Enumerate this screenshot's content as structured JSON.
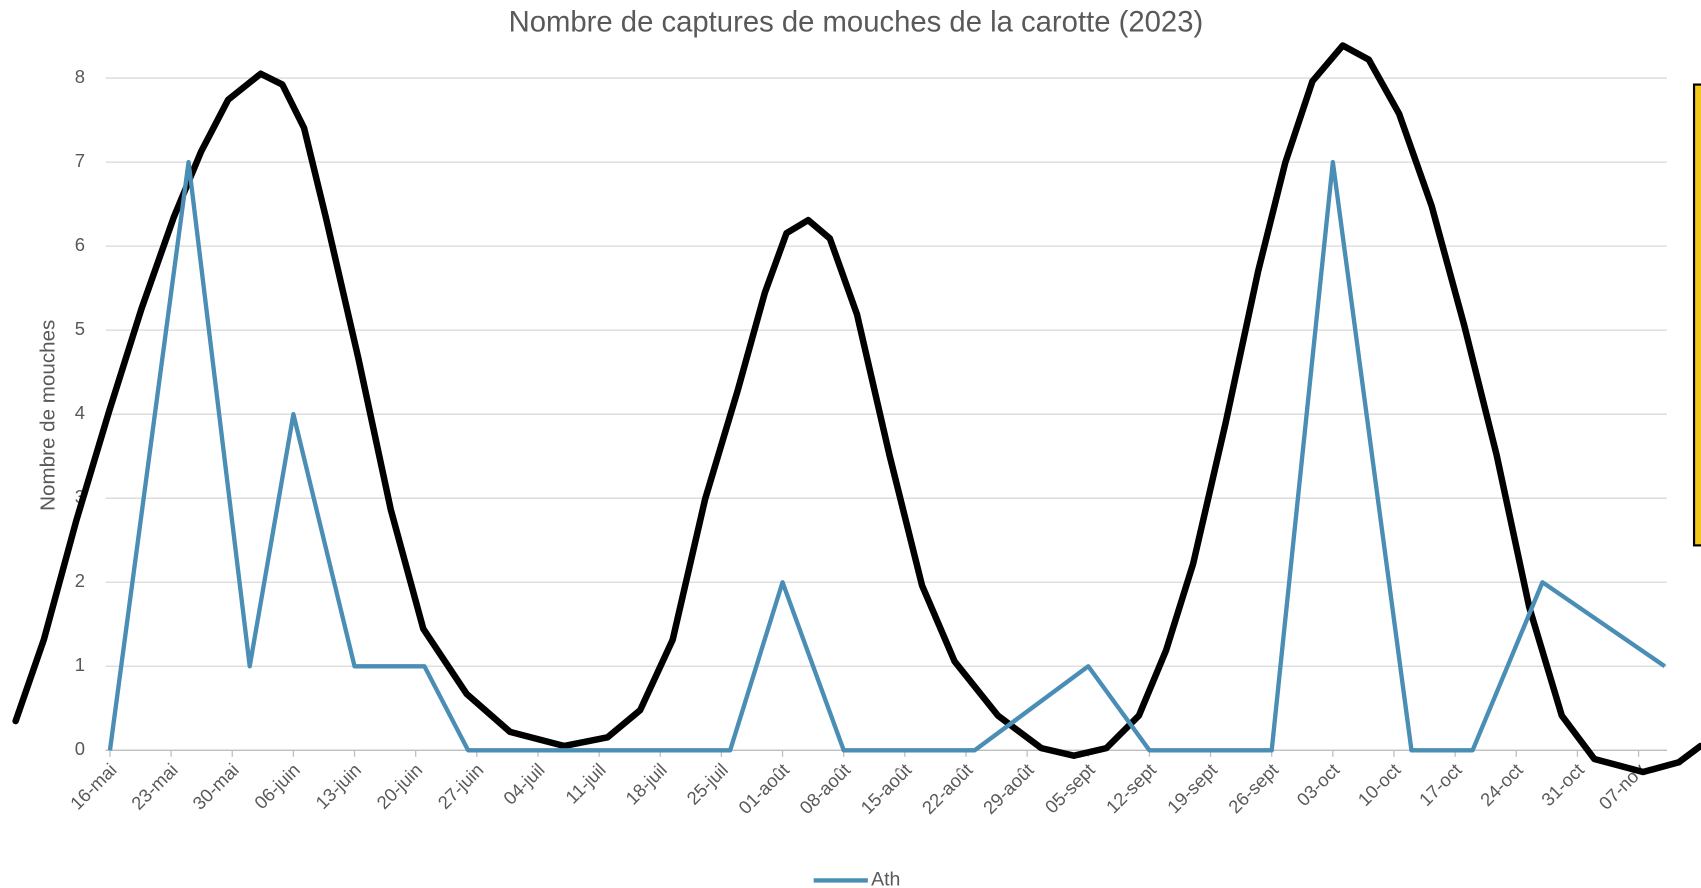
{
  "chart_data": {
    "type": "line",
    "title": "Nombre de captures de mouches de la carotte (2023)",
    "y_label": "Nombre de mouches",
    "x": [
      "2023-05-16",
      "2023-05-25",
      "2023-06-01",
      "2023-06-06",
      "2023-06-13",
      "2023-06-21",
      "2023-06-26",
      "2023-07-26",
      "2023-08-01",
      "2023-08-08",
      "2023-08-23",
      "2023-09-05",
      "2023-09-12",
      "2023-09-26",
      "2023-10-03",
      "2023-10-12",
      "2023-10-19",
      "2023-10-27",
      "2023-11-10"
    ],
    "series": [
      {
        "name": "Ath",
        "color": "#4a8db5",
        "values": [
          0,
          7,
          1,
          4,
          1,
          1,
          0,
          0,
          2,
          0,
          0,
          1,
          0,
          0,
          7,
          0,
          0,
          2,
          1
        ]
      }
    ],
    "xlim": [
      "2023-05-16",
      "2023-11-10"
    ],
    "xticks": [
      {
        "value": "2023-05-16",
        "label": "16-mai"
      },
      {
        "value": "2023-05-23",
        "label": "23-mai"
      },
      {
        "value": "2023-05-30",
        "label": "30-mai"
      },
      {
        "value": "2023-06-06",
        "label": "06-juin"
      },
      {
        "value": "2023-06-13",
        "label": "13-juin"
      },
      {
        "value": "2023-06-20",
        "label": "20-juin"
      },
      {
        "value": "2023-06-27",
        "label": "27-juin"
      },
      {
        "value": "2023-07-04",
        "label": "04-juil"
      },
      {
        "value": "2023-07-11",
        "label": "11-juil"
      },
      {
        "value": "2023-07-18",
        "label": "18-juil"
      },
      {
        "value": "2023-07-25",
        "label": "25-juil"
      },
      {
        "value": "2023-08-01",
        "label": "01-août"
      },
      {
        "value": "2023-08-08",
        "label": "08-août"
      },
      {
        "value": "2023-08-15",
        "label": "15-août"
      },
      {
        "value": "2023-08-22",
        "label": "22-août"
      },
      {
        "value": "2023-08-29",
        "label": "29-août"
      },
      {
        "value": "2023-09-05",
        "label": "05-sept"
      },
      {
        "value": "2023-09-12",
        "label": "12-sept"
      },
      {
        "value": "2023-09-19",
        "label": "19-sept"
      },
      {
        "value": "2023-09-26",
        "label": "26-sept"
      },
      {
        "value": "2023-10-03",
        "label": "03-oct"
      },
      {
        "value": "2023-10-10",
        "label": "10-oct"
      },
      {
        "value": "2023-10-17",
        "label": "17-oct"
      },
      {
        "value": "2023-10-24",
        "label": "24-oct"
      },
      {
        "value": "2023-10-31",
        "label": "31-oct"
      },
      {
        "value": "2023-11-07",
        "label": "07-nov"
      }
    ],
    "ylim": [
      0,
      8
    ],
    "yticks": [
      0,
      1,
      2,
      3,
      4,
      5,
      6,
      7,
      8
    ],
    "grid": true,
    "legend": "bottom"
  }
}
